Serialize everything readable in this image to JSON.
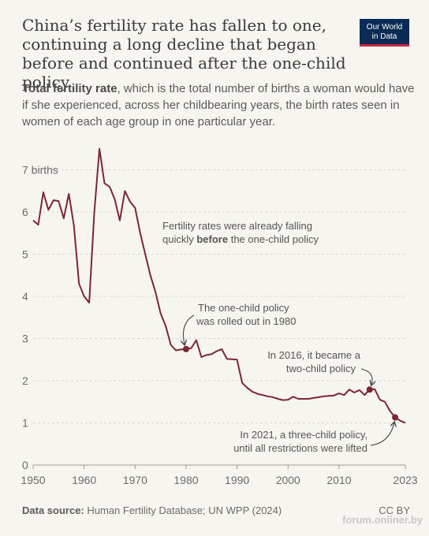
{
  "title": "China’s fertility rate has fallen to one, continuing a long decline that began before and continued after the one-child policy",
  "logo": {
    "line1": "Our World",
    "line2": "in Data"
  },
  "subtitle": {
    "bold": "Total fertility rate",
    "rest": ", which is the total number of births a woman would have if she experienced, across her childbearing years, the birth rates seen in women of each age group in one particular year."
  },
  "footer": {
    "source_label": "Data source:",
    "source_text": " Human Fertility Database; UN WPP (2024)",
    "license": "CC BY",
    "watermark": "forum.onliner.by"
  },
  "colors": {
    "line": "#7d2633",
    "background": "#f7f5f0",
    "logo": "#0a2b55",
    "logo_accent": "#c5283d"
  },
  "chart_data": {
    "type": "line",
    "series": [
      {
        "x": [
          1950,
          1951,
          1952,
          1953,
          1954,
          1955,
          1956,
          1957,
          1958,
          1959,
          1960,
          1961,
          1962,
          1963,
          1964,
          1965,
          1966,
          1967,
          1968,
          1969,
          1970,
          1971,
          1972,
          1973,
          1974,
          1975,
          1976,
          1977,
          1978,
          1979,
          1980,
          1981,
          1982,
          1983,
          1984,
          1985,
          1986,
          1987,
          1988,
          1989,
          1990,
          1991,
          1992,
          1993,
          1994,
          1995,
          1996,
          1997,
          1998,
          1999,
          2000,
          2001,
          2002,
          2003,
          2004,
          2005,
          2006,
          2007,
          2008,
          2009,
          2010,
          2011,
          2012,
          2013,
          2014,
          2015,
          2016,
          2017,
          2018,
          2019,
          2020,
          2021,
          2022,
          2023
        ],
        "values": [
          5.8,
          5.7,
          6.47,
          6.05,
          6.28,
          6.26,
          5.85,
          6.43,
          5.68,
          4.3,
          4.0,
          3.85,
          6.0,
          7.5,
          6.68,
          6.6,
          6.3,
          5.8,
          6.5,
          6.25,
          6.1,
          5.5,
          5.0,
          4.5,
          4.1,
          3.6,
          3.3,
          2.85,
          2.72,
          2.74,
          2.75,
          2.77,
          2.96,
          2.56,
          2.61,
          2.63,
          2.7,
          2.75,
          2.52,
          2.51,
          2.5,
          1.95,
          1.83,
          1.74,
          1.69,
          1.66,
          1.63,
          1.61,
          1.57,
          1.54,
          1.55,
          1.62,
          1.57,
          1.57,
          1.57,
          1.59,
          1.61,
          1.63,
          1.64,
          1.65,
          1.7,
          1.66,
          1.79,
          1.72,
          1.78,
          1.66,
          1.79,
          1.8,
          1.55,
          1.5,
          1.28,
          1.13,
          1.05,
          1.0
        ]
      }
    ],
    "x_ticks": [
      "1950",
      "1960",
      "1970",
      "1980",
      "1990",
      "2000",
      "2010",
      "2023"
    ],
    "y_ticks": [
      {
        "value": 0,
        "label": "0"
      },
      {
        "value": 1,
        "label": "1"
      },
      {
        "value": 2,
        "label": "2"
      },
      {
        "value": 3,
        "label": "3"
      },
      {
        "value": 4,
        "label": "4"
      },
      {
        "value": 5,
        "label": "5"
      },
      {
        "value": 6,
        "label": "6"
      },
      {
        "value": 7,
        "label": "7 births"
      }
    ],
    "xlim": [
      1950,
      2023
    ],
    "ylim": [
      0,
      7.5
    ],
    "grid": "horizontal dashed",
    "highlights": [
      {
        "x": 1980,
        "y": 2.75
      },
      {
        "x": 2016,
        "y": 1.79
      },
      {
        "x": 2021,
        "y": 1.13
      }
    ],
    "annotations": [
      {
        "lines": [
          "Fertility rates were already falling",
          "quickly before the one-child policy"
        ],
        "bold_word": "before"
      },
      {
        "lines": [
          "The one-child policy",
          "was rolled out in 1980"
        ]
      },
      {
        "lines": [
          "In 2016, it became a",
          "two-child policy"
        ]
      },
      {
        "lines": [
          "In 2021, a three-child policy,",
          "until all restrictions were lifted"
        ]
      }
    ]
  }
}
